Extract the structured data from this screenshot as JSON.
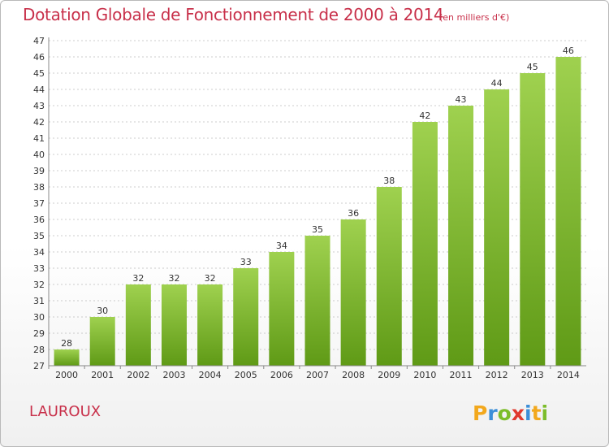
{
  "header": {
    "title": "Dotation Globale de Fonctionnement de 2000 à 2014",
    "subtitle": "(en milliers d'€)"
  },
  "footer": {
    "commune": "LAUROUX",
    "logo_text": "Proxiti"
  },
  "colors": {
    "title": "#c8304a",
    "bar_top": "#9fd14f",
    "bar_bottom": "#5f9a16",
    "grid": "#9a9a9a"
  },
  "chart_data": {
    "type": "bar",
    "title": "Dotation Globale de Fonctionnement de 2000 à 2014",
    "subtitle": "(en milliers d'€)",
    "xlabel": "",
    "ylabel": "",
    "categories": [
      "2000",
      "2001",
      "2002",
      "2003",
      "2004",
      "2005",
      "2006",
      "2007",
      "2008",
      "2009",
      "2010",
      "2011",
      "2012",
      "2013",
      "2014"
    ],
    "values": [
      28,
      30,
      32,
      32,
      32,
      33,
      34,
      35,
      36,
      38,
      42,
      43,
      44,
      45,
      46
    ],
    "ylim": [
      27,
      47
    ],
    "yticks": [
      27,
      28,
      29,
      30,
      31,
      32,
      33,
      34,
      35,
      36,
      37,
      38,
      39,
      40,
      41,
      42,
      43,
      44,
      45,
      46,
      47
    ],
    "grid": "horizontal dashed",
    "legend": "none"
  }
}
